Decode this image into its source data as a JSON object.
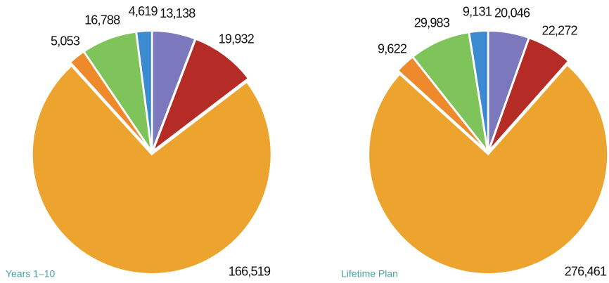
{
  "chart_data": [
    {
      "type": "pie",
      "title": "Years 1–10",
      "values": [
        13138,
        19932,
        166519,
        5053,
        16788,
        4619
      ],
      "value_labels": [
        "13,138",
        "19,932",
        "166,519",
        "5,053",
        "16,788",
        "4,619"
      ],
      "colors": [
        "#7b78bd",
        "#b52b26",
        "#eda42e",
        "#ef8a2c",
        "#7ec45b",
        "#3c8ad0"
      ]
    },
    {
      "type": "pie",
      "title": "Lifetime Plan",
      "values": [
        20046,
        22272,
        276461,
        9622,
        29983,
        9131
      ],
      "value_labels": [
        "20,046",
        "22,272",
        "276,461",
        "9,622",
        "29,983",
        "9,131"
      ],
      "colors": [
        "#7b78bd",
        "#b52b26",
        "#eda42e",
        "#ef8a2c",
        "#7ec45b",
        "#3c8ad0"
      ]
    }
  ]
}
